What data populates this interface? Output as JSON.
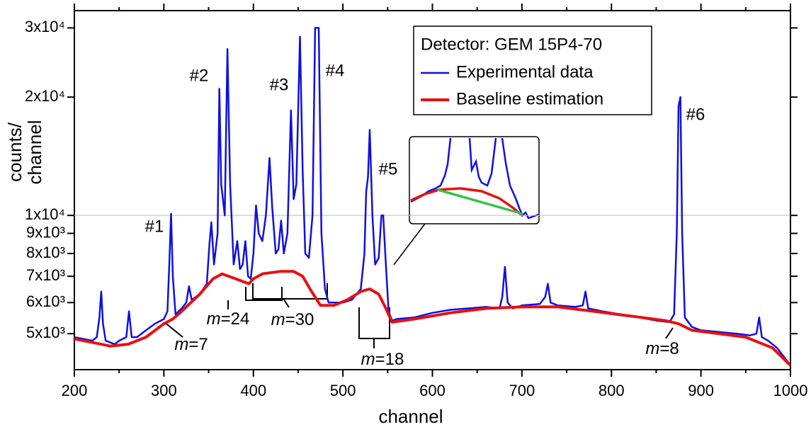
{
  "chart_data": {
    "type": "line",
    "xlabel": "channel",
    "ylabel": [
      "counts/",
      "channel"
    ],
    "yscale": "log",
    "xlim": [
      200,
      1000
    ],
    "xticks": [
      200,
      300,
      400,
      500,
      600,
      700,
      800,
      900,
      1000
    ],
    "ylim": [
      4050,
      33200
    ],
    "yticks": [
      {
        "value": 5000,
        "label": "5x10³"
      },
      {
        "value": 6000,
        "label": "6x10³"
      },
      {
        "value": 7000,
        "label": "7x10³"
      },
      {
        "value": 8000,
        "label": "8x10³"
      },
      {
        "value": 9000,
        "label": "9x10³"
      },
      {
        "value": 10000,
        "label": "1x10⁴"
      },
      {
        "value": 20000,
        "label": "2x10⁴"
      },
      {
        "value": 30000,
        "label": "3x10⁴"
      }
    ],
    "hline": 10000,
    "legend_title": "Detector:  GEM 15P4-70",
    "legend_position": "upper center",
    "annotations": [
      "#1",
      "#2",
      "#3",
      "#4",
      "#5",
      "#6",
      "m=7",
      "m=24",
      "m=30",
      "m=18",
      "m=8"
    ],
    "series": [
      {
        "name": "Experimental data",
        "color": "#1010e0",
        "x": [
          200,
          210,
          220,
          225,
          228,
          230,
          232,
          235,
          245,
          250,
          258,
          261,
          264,
          270,
          280,
          290,
          300,
          304,
          306,
          308,
          310,
          313,
          320,
          325,
          328,
          331,
          340,
          348,
          351,
          353,
          356,
          360,
          362,
          364,
          368,
          371,
          374,
          378,
          382,
          385,
          388,
          391,
          394,
          397,
          400,
          403,
          406,
          410,
          414,
          418,
          421,
          425,
          428,
          431,
          434,
          438,
          442,
          445,
          448,
          452,
          455,
          458,
          462,
          466,
          469,
          473,
          476,
          480,
          484,
          490,
          500,
          510,
          520,
          524,
          526,
          528,
          530,
          533,
          536,
          540,
          543,
          545,
          548,
          551,
          555,
          560,
          580,
          600,
          620,
          640,
          660,
          675,
          678,
          681,
          684,
          690,
          700,
          720,
          726,
          729,
          732,
          740,
          760,
          768,
          771,
          774,
          790,
          810,
          830,
          850,
          865,
          870,
          873,
          875,
          877,
          879,
          882,
          890,
          900,
          920,
          940,
          955,
          962,
          965,
          968,
          975,
          985,
          995,
          1000
        ],
        "values": [
          4900,
          4850,
          4800,
          4900,
          5500,
          6400,
          5300,
          4800,
          4700,
          4800,
          4900,
          5700,
          4900,
          4900,
          5100,
          5300,
          5450,
          5700,
          7500,
          10100,
          7000,
          5600,
          5800,
          6000,
          6600,
          6100,
          6300,
          6700,
          8500,
          9600,
          7500,
          9000,
          21000,
          12000,
          10000,
          26500,
          12000,
          7500,
          8600,
          7300,
          7500,
          8600,
          7000,
          6900,
          8000,
          10600,
          9000,
          8600,
          10000,
          14000,
          10500,
          8000,
          8200,
          9700,
          8000,
          9000,
          18500,
          11000,
          12000,
          28500,
          13000,
          8000,
          7800,
          10000,
          30000,
          30000,
          9000,
          6500,
          6000,
          6000,
          6000,
          6100,
          6500,
          8000,
          11500,
          12500,
          16500,
          10000,
          7500,
          7800,
          10000,
          10000,
          7500,
          5700,
          5400,
          5450,
          5500,
          5650,
          5750,
          5800,
          5850,
          5800,
          6200,
          7400,
          6000,
          5800,
          5900,
          5950,
          6200,
          6700,
          6000,
          5900,
          5850,
          5900,
          6400,
          5800,
          5700,
          5600,
          5500,
          5400,
          5350,
          5600,
          9000,
          19000,
          20000,
          9000,
          5500,
          5200,
          5100,
          5050,
          5000,
          4950,
          5000,
          5500,
          4900,
          4800,
          4600,
          4300,
          4150
        ]
      },
      {
        "name": "Baseline estimation",
        "color": "#e81010",
        "x": [
          200,
          220,
          240,
          260,
          280,
          300,
          310,
          320,
          340,
          355,
          365,
          380,
          395,
          400,
          410,
          430,
          445,
          455,
          465,
          475,
          490,
          505,
          520,
          530,
          540,
          548,
          555,
          580,
          620,
          660,
          700,
          740,
          780,
          820,
          860,
          875,
          890,
          920,
          950,
          980,
          1000
        ],
        "values": [
          4850,
          4750,
          4650,
          4700,
          4900,
          5300,
          5450,
          5700,
          6300,
          6900,
          7100,
          6900,
          6700,
          6900,
          7100,
          7200,
          7200,
          7000,
          6400,
          5900,
          5900,
          6100,
          6400,
          6500,
          6300,
          5800,
          5350,
          5450,
          5650,
          5800,
          5850,
          5850,
          5700,
          5550,
          5400,
          5300,
          5100,
          5000,
          4900,
          4600,
          4150
        ]
      }
    ]
  }
}
